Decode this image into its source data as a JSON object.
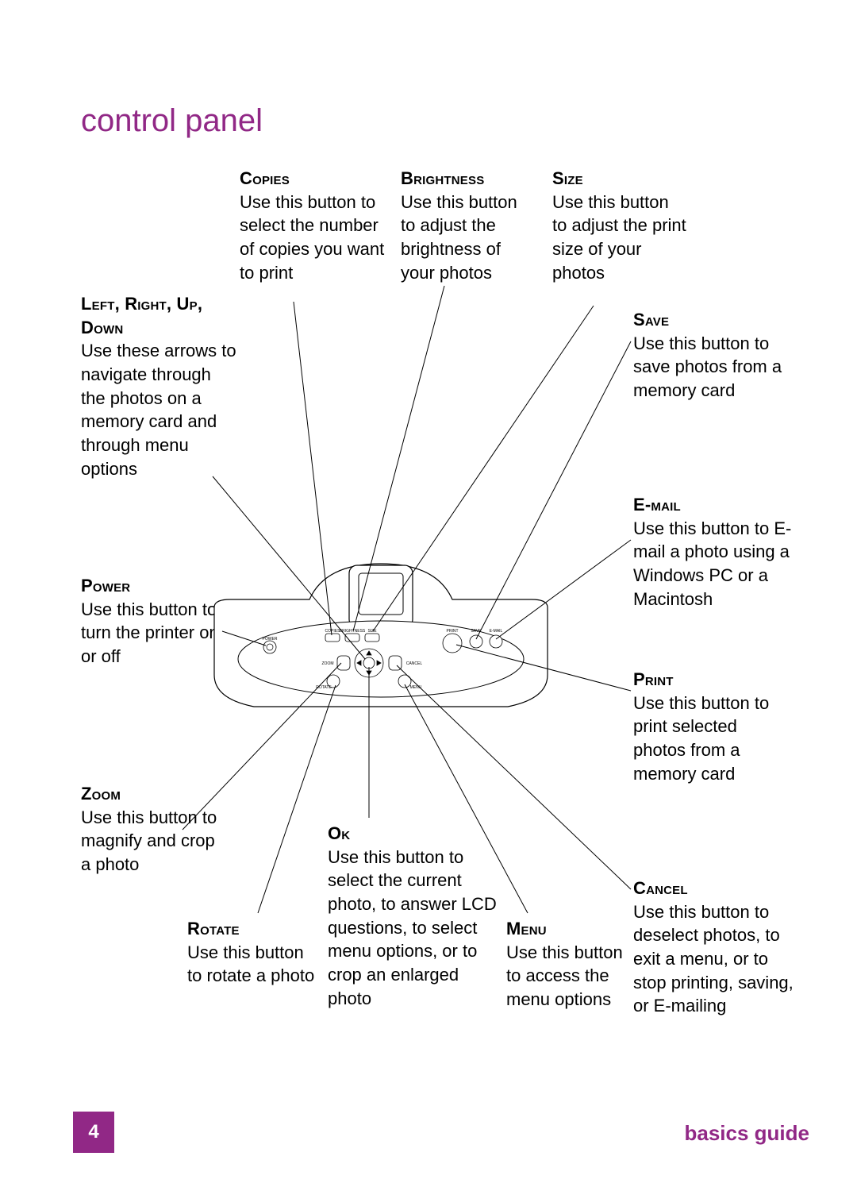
{
  "title": "control panel",
  "footer": {
    "page": "4",
    "guide": "basics guide"
  },
  "colors": {
    "accent": "#912886",
    "text": "#000000",
    "bg": "#ffffff"
  },
  "callouts": {
    "copies": {
      "hdr": "Copies",
      "body": "Use this button to select the number of copies you want to print"
    },
    "brightness": {
      "hdr": "Brightness",
      "body": "Use this button to adjust the brightness of your photos"
    },
    "size": {
      "hdr": "Size",
      "body": "Use this button to adjust the print size of your photos"
    },
    "arrows": {
      "hdr": "Left, Right, Up, Down",
      "body": "Use these arrows to navigate through the photos on a memory card and through menu options"
    },
    "save": {
      "hdr": "Save",
      "body": "Use this button to save photos from a memory card"
    },
    "email": {
      "hdr": "E-mail",
      "body": "Use this button to E-mail a photo using a Windows PC or a Macintosh"
    },
    "power": {
      "hdr": "Power",
      "body": "Use this button to turn the printer on or off"
    },
    "print": {
      "hdr": "Print",
      "body": "Use this button to print selected photos from a memory card"
    },
    "zoom": {
      "hdr": "Zoom",
      "body": "Use this button to magnify and crop a photo"
    },
    "ok": {
      "hdr": "Ok",
      "body": "Use this button to select the current photo, to answer LCD questions, to select menu options, or to crop an enlarged photo"
    },
    "rotate": {
      "hdr": "Rotate",
      "body": "Use this button to rotate a photo"
    },
    "menu": {
      "hdr": "Menu",
      "body": "Use this button to access the menu options"
    },
    "cancel": {
      "hdr": "Cancel",
      "body": "Use this button to deselect photos, to exit a menu, or to stop printing, saving, or E-mailing"
    }
  },
  "diagram": {
    "button_labels": [
      "POWER",
      "COPIES",
      "BRIGHTNESS",
      "SIZE",
      "PRINT",
      "SAVE",
      "E-MAIL",
      "ZOOM",
      "CANCEL",
      "ROTATE",
      "MENU"
    ]
  }
}
